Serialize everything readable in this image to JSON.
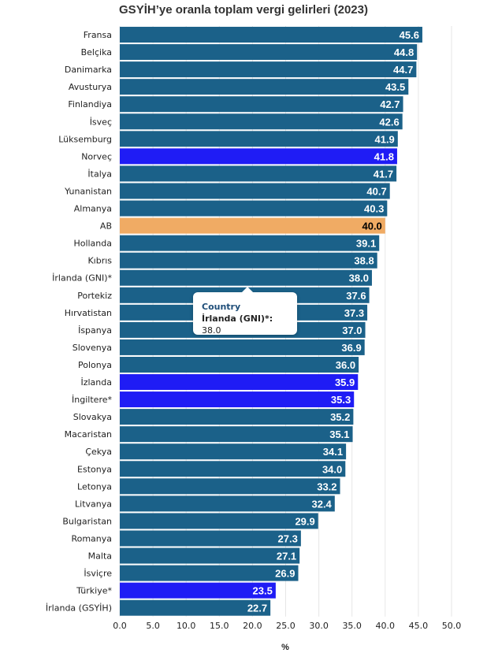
{
  "chart_data": {
    "type": "bar",
    "orientation": "horizontal",
    "title": "GSYİH’ye oranla toplam vergi gelirleri (2023)",
    "xlabel": "%",
    "ylabel": "",
    "xlim": [
      0,
      50
    ],
    "xticks": [
      "0.0",
      "5.0",
      "10.0",
      "15.0",
      "20.0",
      "25.0",
      "30.0",
      "35.0",
      "40.0",
      "45.0",
      "50.0"
    ],
    "grid": true,
    "colors": {
      "default": "#1b6189",
      "highlight": "#1f1cf5",
      "eu": "#f0ab64"
    },
    "categories": [
      "Fransa",
      "Belçika",
      "Danimarka",
      "Avusturya",
      "Finlandiya",
      "İsveç",
      "Lüksemburg",
      "Norveç",
      "İtalya",
      "Yunanistan",
      "Almanya",
      "AB",
      "Hollanda",
      "Kıbrıs",
      "İrlanda (GNI)*",
      "Portekiz",
      "Hırvatistan",
      "İspanya",
      "Slovenya",
      "Polonya",
      "İzlanda",
      "İngiltere*",
      "Slovakya",
      "Macaristan",
      "Çekya",
      "Estonya",
      "Letonya",
      "Litvanya",
      "Bulgaristan",
      "Romanya",
      "Malta",
      "İsviçre",
      "Türkiye*",
      "İrlanda (GSYİH)"
    ],
    "values": [
      45.6,
      44.8,
      44.7,
      43.5,
      42.7,
      42.6,
      41.9,
      41.8,
      41.7,
      40.7,
      40.3,
      40.0,
      39.1,
      38.8,
      38.0,
      37.6,
      37.3,
      37.0,
      36.9,
      36.0,
      35.9,
      35.3,
      35.2,
      35.1,
      34.1,
      34.0,
      33.2,
      32.4,
      29.9,
      27.3,
      27.1,
      26.9,
      23.5,
      22.7
    ],
    "value_labels": [
      "45.6",
      "44.8",
      "44.7",
      "43.5",
      "42.7",
      "42.6",
      "41.9",
      "41.8",
      "41.7",
      "40.7",
      "40.3",
      "40.0",
      "39.1",
      "38.8",
      "38.0",
      "37.6",
      "37.3",
      "37.0",
      "36.9",
      "36.0",
      "35.9",
      "35.3",
      "35.2",
      "35.1",
      "34.1",
      "34.0",
      "33.2",
      "32.4",
      "29.9",
      "27.3",
      "27.1",
      "26.9",
      "23.5",
      "22.7"
    ],
    "bar_kind": [
      "default",
      "default",
      "default",
      "default",
      "default",
      "default",
      "default",
      "highlight",
      "default",
      "default",
      "default",
      "eu",
      "default",
      "default",
      "default",
      "default",
      "default",
      "default",
      "default",
      "default",
      "highlight",
      "highlight",
      "default",
      "default",
      "default",
      "default",
      "default",
      "default",
      "default",
      "default",
      "default",
      "default",
      "highlight",
      "default"
    ]
  },
  "tooltip": {
    "header": "Country",
    "label": "İrlanda (GNI)*:",
    "value": "38.0"
  }
}
